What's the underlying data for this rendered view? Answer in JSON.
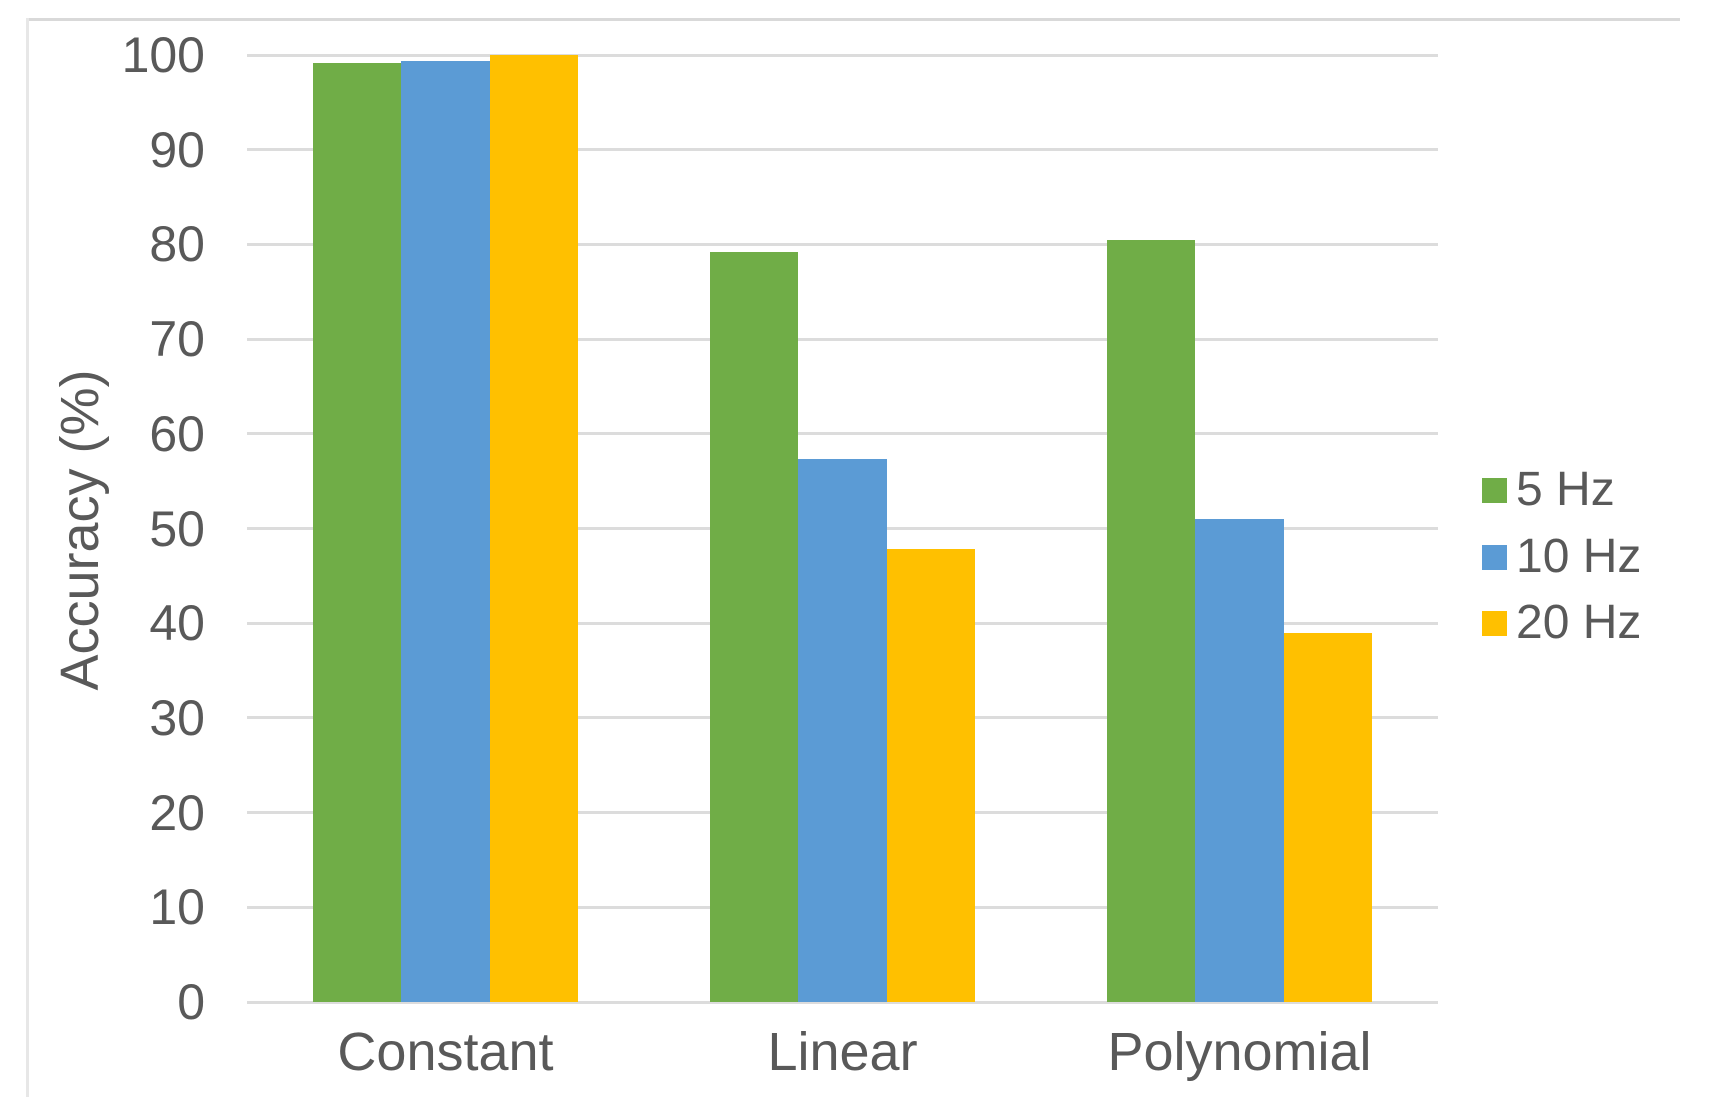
{
  "chart_data": {
    "type": "bar",
    "title": "",
    "xlabel": "",
    "ylabel": "Accuracy (%)",
    "categories": [
      "Constant",
      "Linear",
      "Polynomial"
    ],
    "series": [
      {
        "name": "5 Hz",
        "color": "#70AD47",
        "values": [
          99.2,
          79.2,
          80.5
        ]
      },
      {
        "name": "10 Hz",
        "color": "#5B9BD5",
        "values": [
          99.4,
          57.3,
          51.0
        ]
      },
      {
        "name": "20 Hz",
        "color": "#FFC000",
        "values": [
          100.0,
          47.8,
          39.0
        ]
      }
    ],
    "ylim": [
      0,
      100
    ],
    "yticks": [
      0,
      10,
      20,
      30,
      40,
      50,
      60,
      70,
      80,
      90,
      100
    ],
    "grid": "horizontal",
    "legend": {
      "position": "right",
      "entries": [
        "5 Hz",
        "10 Hz",
        "20 Hz"
      ]
    },
    "colors": {
      "axis_text": "#595959",
      "gridline": "#DCDCDC",
      "background": "#FFFFFF",
      "frame_border": "#D9D9D9"
    }
  }
}
